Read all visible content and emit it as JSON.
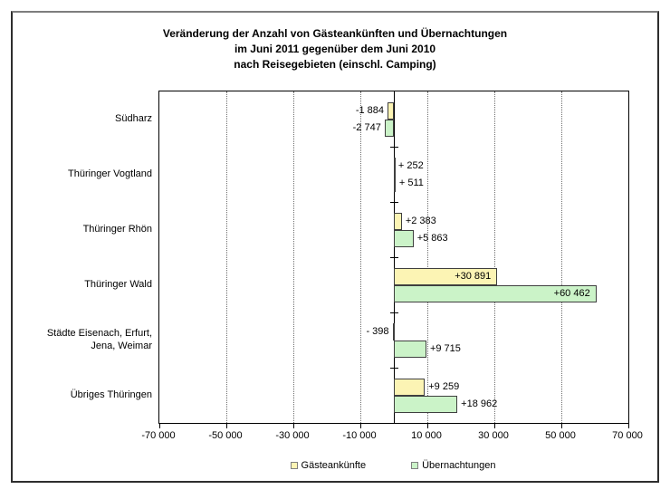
{
  "title_lines": [
    "Veränderung der Anzahl von Gästeankünften und Übernachtungen",
    "im Juni 2011 gegenüber dem Juni 2010",
    "nach Reisegebieten (einschl. Camping)"
  ],
  "chart_data": {
    "type": "bar",
    "orientation": "horizontal",
    "title": "Veränderung der Anzahl von Gästeankünften und Übernachtungen im Juni 2011 gegenüber dem Juni 2010 nach Reisegebieten (einschl. Camping)",
    "categories": [
      "Südharz",
      "Thüringer Vogtland",
      "Thüringer Rhön",
      "Thüringer Wald",
      "Städte Eisenach, Erfurt,\nJena, Weimar",
      "Übriges Thüringen"
    ],
    "series": [
      {
        "name": "Gästeankünfte",
        "color": "#FCF4B4",
        "values": [
          -1884,
          252,
          2383,
          30891,
          -398,
          9259
        ],
        "labels": [
          "-1 884",
          "+ 252",
          "+2 383",
          "+30 891",
          "- 398",
          "+9 259"
        ],
        "label_pos": [
          "left",
          "right",
          "right",
          "inside",
          "left",
          "right"
        ]
      },
      {
        "name": "Übernachtungen",
        "color": "#CBF3C8",
        "values": [
          -2747,
          511,
          5863,
          60462,
          9715,
          18962
        ],
        "labels": [
          "-2 747",
          "+ 511",
          "+5 863",
          "+60 462",
          "+9 715",
          "+18 962"
        ],
        "label_pos": [
          "left",
          "right",
          "right",
          "inside",
          "right",
          "right"
        ]
      }
    ],
    "x_axis": {
      "min": -70000,
      "max": 70000,
      "tick_step": 20000,
      "ticks": [
        -70000,
        -50000,
        -30000,
        -10000,
        10000,
        30000,
        50000,
        70000
      ],
      "tick_labels": [
        "-70 000",
        "-50 000",
        "-30 000",
        "-10 000",
        "10 000",
        "30 000",
        "50 000",
        "70 000"
      ],
      "gridlines_at": [
        -50000,
        -30000,
        -10000,
        10000,
        30000,
        50000
      ],
      "zero_line": true,
      "grid_style": "dotted"
    },
    "legend": [
      {
        "label": "Gästeankünfte",
        "color": "#FCF4B4"
      },
      {
        "label": "Übernachtungen",
        "color": "#CBF3C8"
      }
    ],
    "legend_position": "bottom"
  }
}
